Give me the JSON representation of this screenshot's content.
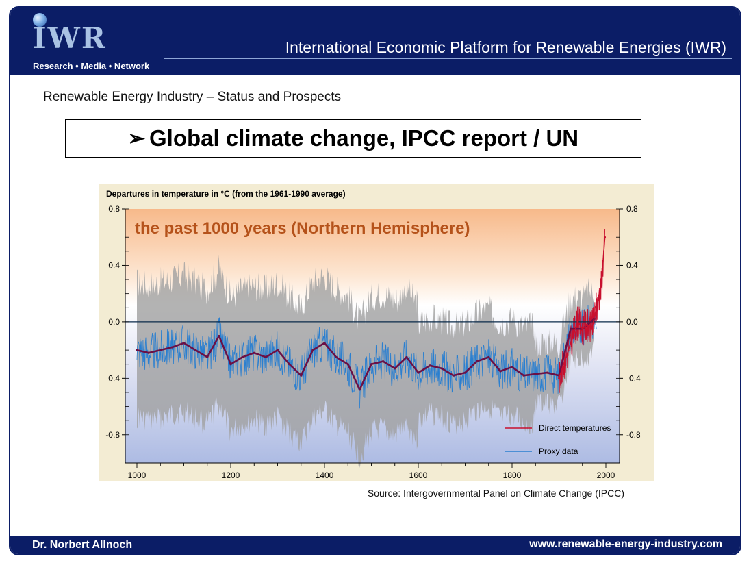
{
  "header": {
    "logo": "IWR",
    "tagline": "Research • Media • Network",
    "title": "International Economic Platform for Renewable Energies (IWR)"
  },
  "slide": {
    "subtitle": "Renewable Energy Industry – Status and Prospects",
    "bullet": "➢",
    "title": "Global climate change, IPCC report / UN",
    "source": "Source: Intergovernmental Panel on Climate Change (IPCC)"
  },
  "footer": {
    "author": "Dr. Norbert Allnoch",
    "website": "www.renewable-energy-industry.com"
  },
  "colors": {
    "brand": "#0b1d66",
    "direct": "#c8102e",
    "proxy": "#2a7fd0",
    "smooth": "#6b1046",
    "uncertainty": "#a0a0a0"
  },
  "chart_data": {
    "type": "line",
    "title": "the past 1000 years (Northern Hemisphere)",
    "ylabel": "Departures in temperature in °C (from the 1961-1990 average)",
    "xlim": [
      1000,
      2000
    ],
    "ylim": [
      -1.0,
      0.8
    ],
    "xticks": [
      "1000",
      "1200",
      "1400",
      "1600",
      "1800",
      "2000"
    ],
    "yticks_left": [
      "0.8",
      "0.4",
      "0.0",
      "-0.4",
      "-0.8"
    ],
    "yticks_right": [
      "0.8",
      "0.4",
      "0.0",
      "-0.4",
      "-0.8"
    ],
    "legend": [
      "Direct temperatures",
      "Proxy data"
    ],
    "legend_position": "bottom-right",
    "series": [
      {
        "name": "Proxy data",
        "x": [
          1000,
          1025,
          1050,
          1075,
          1100,
          1125,
          1150,
          1175,
          1200,
          1225,
          1250,
          1275,
          1300,
          1325,
          1350,
          1375,
          1400,
          1425,
          1450,
          1475,
          1500,
          1525,
          1550,
          1575,
          1600,
          1625,
          1650,
          1675,
          1700,
          1725,
          1750,
          1775,
          1800,
          1825,
          1850,
          1875,
          1900,
          1925,
          1950,
          1975
        ],
        "values": [
          -0.2,
          -0.22,
          -0.2,
          -0.18,
          -0.15,
          -0.2,
          -0.25,
          -0.1,
          -0.3,
          -0.25,
          -0.22,
          -0.25,
          -0.2,
          -0.3,
          -0.38,
          -0.2,
          -0.15,
          -0.25,
          -0.3,
          -0.48,
          -0.3,
          -0.28,
          -0.33,
          -0.25,
          -0.36,
          -0.31,
          -0.33,
          -0.38,
          -0.36,
          -0.28,
          -0.25,
          -0.35,
          -0.32,
          -0.38,
          -0.37,
          -0.36,
          -0.38,
          -0.05,
          -0.05,
          0.02
        ]
      },
      {
        "name": "Direct temperatures",
        "x": [
          1900,
          1910,
          1920,
          1930,
          1940,
          1950,
          1960,
          1970,
          1980,
          1990,
          1998
        ],
        "values": [
          -0.4,
          -0.3,
          -0.2,
          -0.1,
          0.0,
          -0.05,
          -0.02,
          -0.05,
          0.1,
          0.25,
          0.6
        ]
      }
    ],
    "grid": false
  }
}
